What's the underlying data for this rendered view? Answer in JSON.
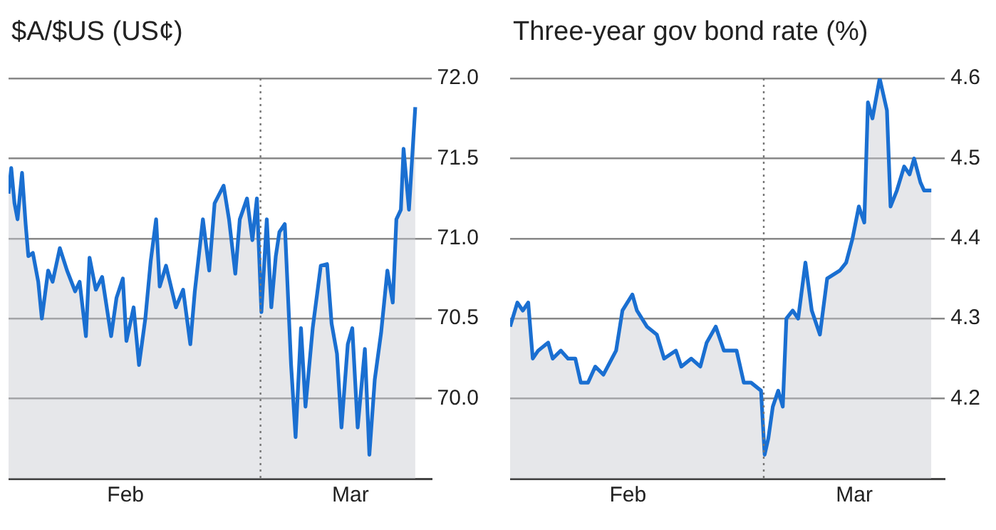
{
  "chart_data": [
    {
      "type": "area",
      "title": "$A/$US (US¢)",
      "x": [
        "--02-01T00:00",
        "--02-01T07:12",
        "--02-01T15:50",
        "--02-02T00:00",
        "--02-02T12:00",
        "--02-02T21:36",
        "--02-03T04:48",
        "--02-03T16:48",
        "--02-04T07:12",
        "--02-04T16:48",
        "--02-05T09:36",
        "--02-05T21:36",
        "--02-06T16:48",
        "--02-07T12:00",
        "--02-08T09:36",
        "--02-08T21:36",
        "--02-09T14:24",
        "--02-10T00:00",
        "--02-10T16:48",
        "--02-11T09:36",
        "--02-12T09:36",
        "--02-13T00:00",
        "--02-13T16:48",
        "--02-14T02:24",
        "--02-14T21:36",
        "--02-15T12:00",
        "--02-16T04:48",
        "--02-16T19:12",
        "--02-17T09:36",
        "--02-17T19:12",
        "--02-18T12:00",
        "--02-19T14:24",
        "--02-20T09:36",
        "--02-21T04:48",
        "--02-21T16:48",
        "--02-22T14:24",
        "--02-23T07:12",
        "--02-23T21:36",
        "--02-24T21:36",
        "--02-25T12:00",
        "--02-26T04:48",
        "--02-26T16:48",
        "--02-27T12:00",
        "--02-28T02:24",
        "--02-28T14:24",
        "--03-01T02:24",
        "--03-01T16:48",
        "--03-02T04:48",
        "--03-02T16:48",
        "--03-03T02:24",
        "--03-03T16:48",
        "--03-04T09:36",
        "--03-04T21:36",
        "--03-05T12:00",
        "--03-06T00:00",
        "--03-06T19:12",
        "--03-07T16:48",
        "--03-08T09:36",
        "--03-08T21:36",
        "--03-09T12:00",
        "--03-10T00:00",
        "--03-10T16:48",
        "--03-11T04:48",
        "--03-11T19:12",
        "--03-12T14:24",
        "--03-13T02:24",
        "--03-13T16:48",
        "--03-14T09:36",
        "--03-15T02:24",
        "--03-15T16:48",
        "--03-16T02:24",
        "--03-16T14:24",
        "--03-16T21:36",
        "--03-17T12:00",
        "--03-18T04:48"
      ],
      "series": [
        {
          "color": "#1a6fd1",
          "values": [
            71.28,
            71.44,
            71.22,
            71.12,
            71.41,
            71.09,
            70.89,
            70.91,
            70.73,
            70.5,
            70.8,
            70.73,
            70.94,
            70.8,
            70.67,
            70.73,
            70.39,
            70.88,
            70.68,
            70.76,
            70.39,
            70.63,
            70.75,
            70.36,
            70.57,
            70.21,
            70.5,
            70.86,
            71.12,
            70.7,
            70.83,
            70.57,
            70.68,
            70.34,
            70.67,
            71.12,
            70.8,
            71.22,
            71.33,
            71.12,
            70.78,
            71.12,
            71.25,
            70.99,
            71.25,
            70.54,
            71.12,
            70.57,
            70.89,
            71.04,
            71.09,
            70.21,
            69.76,
            70.44,
            69.95,
            70.44,
            70.83,
            70.84,
            70.47,
            70.28,
            69.82,
            70.34,
            70.44,
            69.82,
            70.31,
            69.65,
            70.12,
            70.41,
            70.8,
            70.6,
            71.12,
            71.18,
            71.56,
            71.18,
            71.82
          ]
        }
      ],
      "xlim": [
        "--02-01",
        "--03-20"
      ],
      "xticks": [
        {
          "value": "--02-14",
          "label": "Feb"
        },
        {
          "value": "--03-11",
          "label": "Mar"
        }
      ],
      "ylim": [
        69.5,
        72.0
      ],
      "yticks": [
        {
          "value": 70,
          "label": "70.0"
        },
        {
          "value": 70.5,
          "label": "70.5"
        },
        {
          "value": 71,
          "label": "71.0"
        },
        {
          "value": 71.5,
          "label": "71.5"
        },
        {
          "value": 72,
          "label": "72.0"
        }
      ],
      "grid": "y",
      "ref_lines": [
        {
          "axis": "x",
          "value": "--03-01",
          "line_style": "dotted",
          "color": "#777777"
        }
      ]
    },
    {
      "type": "area",
      "title": "Three-year gov bond rate (%)",
      "x": [
        "--02-01T00:00",
        "--02-01T19:12",
        "--02-02T09:36",
        "--02-03T00:00",
        "--02-03T12:00",
        "--02-04T02:24",
        "--02-05T04:48",
        "--02-05T16:48",
        "--02-06T14:24",
        "--02-07T09:36",
        "--02-08T04:48",
        "--02-08T19:12",
        "--02-09T14:24",
        "--02-10T09:36",
        "--02-11T07:12",
        "--02-12T16:48",
        "--02-13T09:36",
        "--02-14T12:00",
        "--02-15T00:00",
        "--02-16T02:24",
        "--02-17T04:48",
        "--02-18T00:00",
        "--02-19T07:12",
        "--02-19T21:36",
        "--02-21T00:00",
        "--02-22T00:00",
        "--02-22T16:48",
        "--02-23T16:48",
        "--02-24T14:24",
        "--02-26T00:00",
        "--02-26T19:12",
        "--02-27T14:24",
        "--02-28T16:48",
        "--03-01T02:24",
        "--03-01T12:00",
        "--03-02T00:00",
        "--03-02T14:24",
        "--03-03T02:24",
        "--03-03T12:00",
        "--03-04T04:48",
        "--03-04T19:12",
        "--03-05T14:24",
        "--03-06T07:12",
        "--03-07T04:48",
        "--03-08T00:00",
        "--03-09T09:36",
        "--03-10T02:24",
        "--03-10T19:12",
        "--03-11T12:00",
        "--03-12T02:24",
        "--03-12T12:00",
        "--03-13T00:00",
        "--03-13T19:12",
        "--03-14T14:24",
        "--03-15T00:00",
        "--03-15T16:48",
        "--03-16T12:00",
        "--03-17T02:24",
        "--03-17T14:24",
        "--03-18T07:12",
        "--03-18T16:48",
        "--03-19T12:00"
      ],
      "series": [
        {
          "color": "#1a6fd1",
          "values": [
            4.29,
            4.32,
            4.31,
            4.32,
            4.25,
            4.26,
            4.27,
            4.25,
            4.26,
            4.25,
            4.25,
            4.22,
            4.22,
            4.24,
            4.23,
            4.26,
            4.31,
            4.33,
            4.31,
            4.29,
            4.28,
            4.25,
            4.26,
            4.24,
            4.25,
            4.24,
            4.27,
            4.29,
            4.26,
            4.26,
            4.22,
            4.22,
            4.21,
            4.13,
            4.15,
            4.19,
            4.21,
            4.19,
            4.3,
            4.31,
            4.3,
            4.37,
            4.31,
            4.28,
            4.35,
            4.36,
            4.37,
            4.4,
            4.44,
            4.42,
            4.57,
            4.55,
            4.6,
            4.56,
            4.44,
            4.46,
            4.49,
            4.48,
            4.5,
            4.47,
            4.46,
            4.46
          ]
        }
      ],
      "xlim": [
        "--02-01",
        "--03-21"
      ],
      "xticks": [
        {
          "value": "--02-14",
          "label": "Feb"
        },
        {
          "value": "--03-11",
          "label": "Mar"
        }
      ],
      "ylim": [
        4.1,
        4.6
      ],
      "yticks": [
        4.2,
        4.3,
        4.4,
        4.5,
        4.6
      ],
      "grid": "y",
      "ref_lines": [
        {
          "axis": "x",
          "value": "--03-01",
          "line_style": "dotted",
          "color": "#777777"
        }
      ]
    }
  ]
}
